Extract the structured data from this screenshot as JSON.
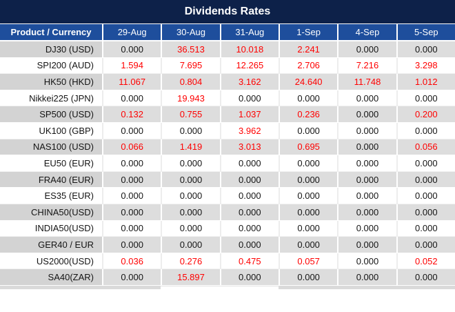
{
  "title": "Dividends Rates",
  "colors": {
    "title_bg": "#0d2149",
    "header_bg": "#1e4e9c",
    "header_text": "#ffffff",
    "row_gray_bg": "#dddddd",
    "row_gray_product_bg": "#d3d3d3",
    "row_white_bg": "#ffffff",
    "value_black": "#141414",
    "value_red": "#ff0000"
  },
  "chart_data": {
    "type": "table",
    "title": "Dividends Rates",
    "columns": [
      "Product / Currency",
      "29-Aug",
      "30-Aug",
      "31-Aug",
      "1-Sep",
      "4-Sep",
      "5-Sep"
    ],
    "rows": [
      {
        "product": "DJ30 (USD)",
        "values": [
          "0.000",
          "36.513",
          "10.018",
          "2.241",
          "0.000",
          "0.000"
        ],
        "red": [
          false,
          true,
          true,
          true,
          false,
          false
        ]
      },
      {
        "product": "SPI200 (AUD)",
        "values": [
          "1.594",
          "7.695",
          "12.265",
          "2.706",
          "7.216",
          "3.298"
        ],
        "red": [
          true,
          true,
          true,
          true,
          true,
          true
        ]
      },
      {
        "product": "HK50 (HKD)",
        "values": [
          "11.067",
          "0.804",
          "3.162",
          "24.640",
          "11.748",
          "1.012"
        ],
        "red": [
          true,
          true,
          true,
          true,
          true,
          true
        ]
      },
      {
        "product": "Nikkei225 (JPN)",
        "values": [
          "0.000",
          "19.943",
          "0.000",
          "0.000",
          "0.000",
          "0.000"
        ],
        "red": [
          false,
          true,
          false,
          false,
          false,
          false
        ]
      },
      {
        "product": "SP500 (USD)",
        "values": [
          "0.132",
          "0.755",
          "1.037",
          "0.236",
          "0.000",
          "0.200"
        ],
        "red": [
          true,
          true,
          true,
          true,
          false,
          true
        ]
      },
      {
        "product": "UK100 (GBP)",
        "values": [
          "0.000",
          "0.000",
          "3.962",
          "0.000",
          "0.000",
          "0.000"
        ],
        "red": [
          false,
          false,
          true,
          false,
          false,
          false
        ]
      },
      {
        "product": "NAS100 (USD)",
        "values": [
          "0.066",
          "1.419",
          "3.013",
          "0.695",
          "0.000",
          "0.056"
        ],
        "red": [
          true,
          true,
          true,
          true,
          false,
          true
        ]
      },
      {
        "product": "EU50 (EUR)",
        "values": [
          "0.000",
          "0.000",
          "0.000",
          "0.000",
          "0.000",
          "0.000"
        ],
        "red": [
          false,
          false,
          false,
          false,
          false,
          false
        ]
      },
      {
        "product": "FRA40 (EUR)",
        "values": [
          "0.000",
          "0.000",
          "0.000",
          "0.000",
          "0.000",
          "0.000"
        ],
        "red": [
          false,
          false,
          false,
          false,
          false,
          false
        ]
      },
      {
        "product": "ES35 (EUR)",
        "values": [
          "0.000",
          "0.000",
          "0.000",
          "0.000",
          "0.000",
          "0.000"
        ],
        "red": [
          false,
          false,
          false,
          false,
          false,
          false
        ]
      },
      {
        "product": "CHINA50(USD)",
        "values": [
          "0.000",
          "0.000",
          "0.000",
          "0.000",
          "0.000",
          "0.000"
        ],
        "red": [
          false,
          false,
          false,
          false,
          false,
          false
        ]
      },
      {
        "product": "INDIA50(USD)",
        "values": [
          "0.000",
          "0.000",
          "0.000",
          "0.000",
          "0.000",
          "0.000"
        ],
        "red": [
          false,
          false,
          false,
          false,
          false,
          false
        ]
      },
      {
        "product": "GER40 / EUR",
        "values": [
          "0.000",
          "0.000",
          "0.000",
          "0.000",
          "0.000",
          "0.000"
        ],
        "red": [
          false,
          false,
          false,
          false,
          false,
          false
        ]
      },
      {
        "product": "US2000(USD)",
        "values": [
          "0.036",
          "0.276",
          "0.475",
          "0.057",
          "0.000",
          "0.052"
        ],
        "red": [
          true,
          true,
          true,
          true,
          false,
          true
        ]
      },
      {
        "product": "SA40(ZAR)",
        "values": [
          "0.000",
          "15.897",
          "0.000",
          "0.000",
          "0.000",
          "0.000"
        ],
        "red": [
          false,
          true,
          false,
          false,
          false,
          false
        ]
      }
    ]
  }
}
